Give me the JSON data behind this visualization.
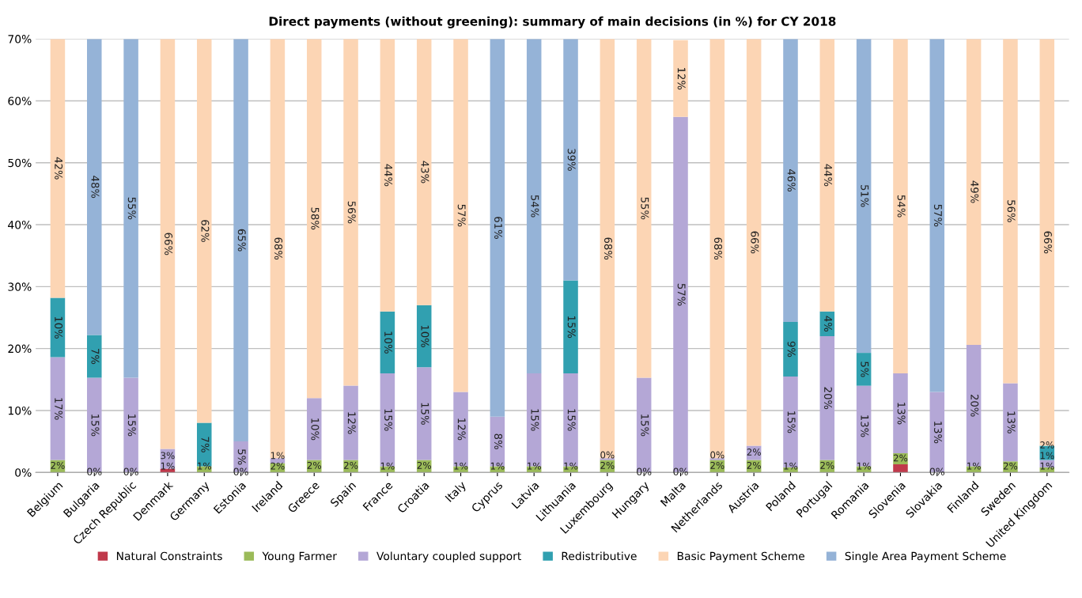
{
  "chart_data": {
    "type": "bar",
    "stacked": true,
    "title": "Direct payments (without greening): summary of main decisions (in %) for CY 2018",
    "categories": [
      "Belgium",
      "Bulgaria",
      "Czech Republic",
      "Denmark",
      "Germany",
      "Estonia",
      "Ireland",
      "Greece",
      "Spain",
      "France",
      "Croatia",
      "Italy",
      "Cyprus",
      "Latvia",
      "Lithuania",
      "Luxembourg",
      "Hungary",
      "Malta",
      "Netherlands",
      "Austria",
      "Poland",
      "Portugal",
      "Romania",
      "Slovenia",
      "Slovakia",
      "Finland",
      "Sweden",
      "United Kingdom"
    ],
    "ylim": [
      0,
      70
    ],
    "yticks": [
      {
        "value": 0,
        "label": "0%"
      },
      {
        "value": 10,
        "label": "10%"
      },
      {
        "value": 20,
        "label": "20%"
      },
      {
        "value": 30,
        "label": "30%"
      },
      {
        "value": 40,
        "label": "40%"
      },
      {
        "value": 50,
        "label": "50%"
      },
      {
        "value": 60,
        "label": "60%"
      },
      {
        "value": 70,
        "label": "70%"
      }
    ],
    "grid": "y",
    "legend": "bottom",
    "series": [
      {
        "name": "Natural Constraints",
        "color": "#c0394b",
        "values": [
          null,
          null,
          null,
          0.6,
          null,
          null,
          null,
          null,
          null,
          null,
          null,
          null,
          null,
          null,
          null,
          null,
          null,
          null,
          null,
          null,
          null,
          null,
          null,
          1.3,
          null,
          null,
          null,
          null
        ],
        "value_labels": [
          null,
          null,
          null,
          "1%",
          null,
          null,
          null,
          null,
          null,
          null,
          null,
          null,
          null,
          null,
          null,
          null,
          null,
          null,
          null,
          null,
          null,
          null,
          null,
          null,
          null,
          null,
          null,
          null
        ]
      },
      {
        "name": "Young Farmer",
        "color": "#9bbb59",
        "values": [
          2,
          0,
          0,
          null,
          1,
          0,
          1.5,
          2,
          2,
          1,
          2,
          1,
          1,
          1,
          1,
          2,
          0,
          0,
          2,
          2,
          0.8,
          2,
          1,
          1.8,
          0,
          1,
          1.8,
          0.8
        ],
        "value_labels": [
          "2%",
          "0%",
          "0%",
          null,
          "1%",
          "0%",
          "2%",
          "2%",
          "2%",
          "1%",
          "2%",
          "1%",
          "1%",
          "1%",
          "1%",
          "2%",
          "0%",
          "0%",
          "2%",
          "2%",
          "1%",
          "2%",
          "1%",
          "2%",
          "0%",
          "1%",
          "2%",
          "1%"
        ]
      },
      {
        "name": "Voluntary coupled support",
        "color": "#b4a7d6",
        "values": [
          16.6,
          15.3,
          15.3,
          3.2,
          null,
          5,
          0.8,
          10,
          12,
          15,
          15,
          12,
          8,
          15,
          15,
          0.3,
          15.3,
          57.4,
          0.3,
          2.3,
          14.7,
          20,
          13,
          12.9,
          13,
          19.6,
          12.6,
          1.2
        ],
        "value_labels": [
          "17%",
          "15%",
          "15%",
          "3%",
          null,
          "5%",
          "1%",
          "10%",
          "12%",
          "15%",
          "15%",
          "12%",
          "8%",
          "15%",
          "15%",
          "0%",
          "15%",
          "57%",
          "0%",
          "2%",
          "15%",
          "20%",
          "13%",
          "13%",
          "13%",
          "20%",
          "13%",
          "1%"
        ]
      },
      {
        "name": "Redistributive",
        "color": "#31a0b0",
        "values": [
          9.6,
          6.9,
          null,
          null,
          7,
          null,
          null,
          null,
          null,
          10,
          10,
          null,
          null,
          null,
          15,
          null,
          null,
          null,
          null,
          null,
          8.8,
          4,
          5.3,
          null,
          null,
          null,
          null,
          2.3
        ],
        "value_labels": [
          "10%",
          "7%",
          null,
          null,
          "7%",
          null,
          null,
          null,
          null,
          "10%",
          "10%",
          null,
          null,
          null,
          "15%",
          null,
          null,
          null,
          null,
          null,
          "9%",
          "4%",
          "5%",
          null,
          null,
          null,
          null,
          "2%"
        ]
      },
      {
        "name": "Basic Payment Scheme",
        "color": "#fcd5b4",
        "values": [
          41.8,
          null,
          null,
          66.2,
          62,
          null,
          67.7,
          58,
          56,
          44,
          43,
          57,
          null,
          null,
          null,
          67.7,
          54.7,
          12.4,
          67.7,
          65.7,
          null,
          44,
          null,
          54,
          null,
          49.4,
          55.6,
          65.7
        ],
        "value_labels": [
          "42%",
          null,
          null,
          "66%",
          "62%",
          null,
          "68%",
          "58%",
          "56%",
          "44%",
          "43%",
          "57%",
          null,
          null,
          null,
          "68%",
          "55%",
          "12%",
          "68%",
          "66%",
          null,
          "44%",
          null,
          "54%",
          null,
          "49%",
          "56%",
          "66%"
        ]
      },
      {
        "name": "Single Area Payment Scheme",
        "color": "#95b3d7",
        "values": [
          null,
          47.8,
          54.7,
          null,
          null,
          65,
          null,
          null,
          null,
          null,
          null,
          null,
          61,
          54,
          39,
          null,
          null,
          null,
          null,
          null,
          45.7,
          null,
          50.7,
          null,
          57,
          null,
          null,
          null
        ],
        "value_labels": [
          null,
          "48%",
          "55%",
          null,
          null,
          "65%",
          null,
          null,
          null,
          null,
          null,
          null,
          "61%",
          "54%",
          "39%",
          null,
          null,
          null,
          null,
          null,
          "46%",
          null,
          "51%",
          null,
          "57%",
          null,
          null,
          null
        ]
      }
    ]
  }
}
